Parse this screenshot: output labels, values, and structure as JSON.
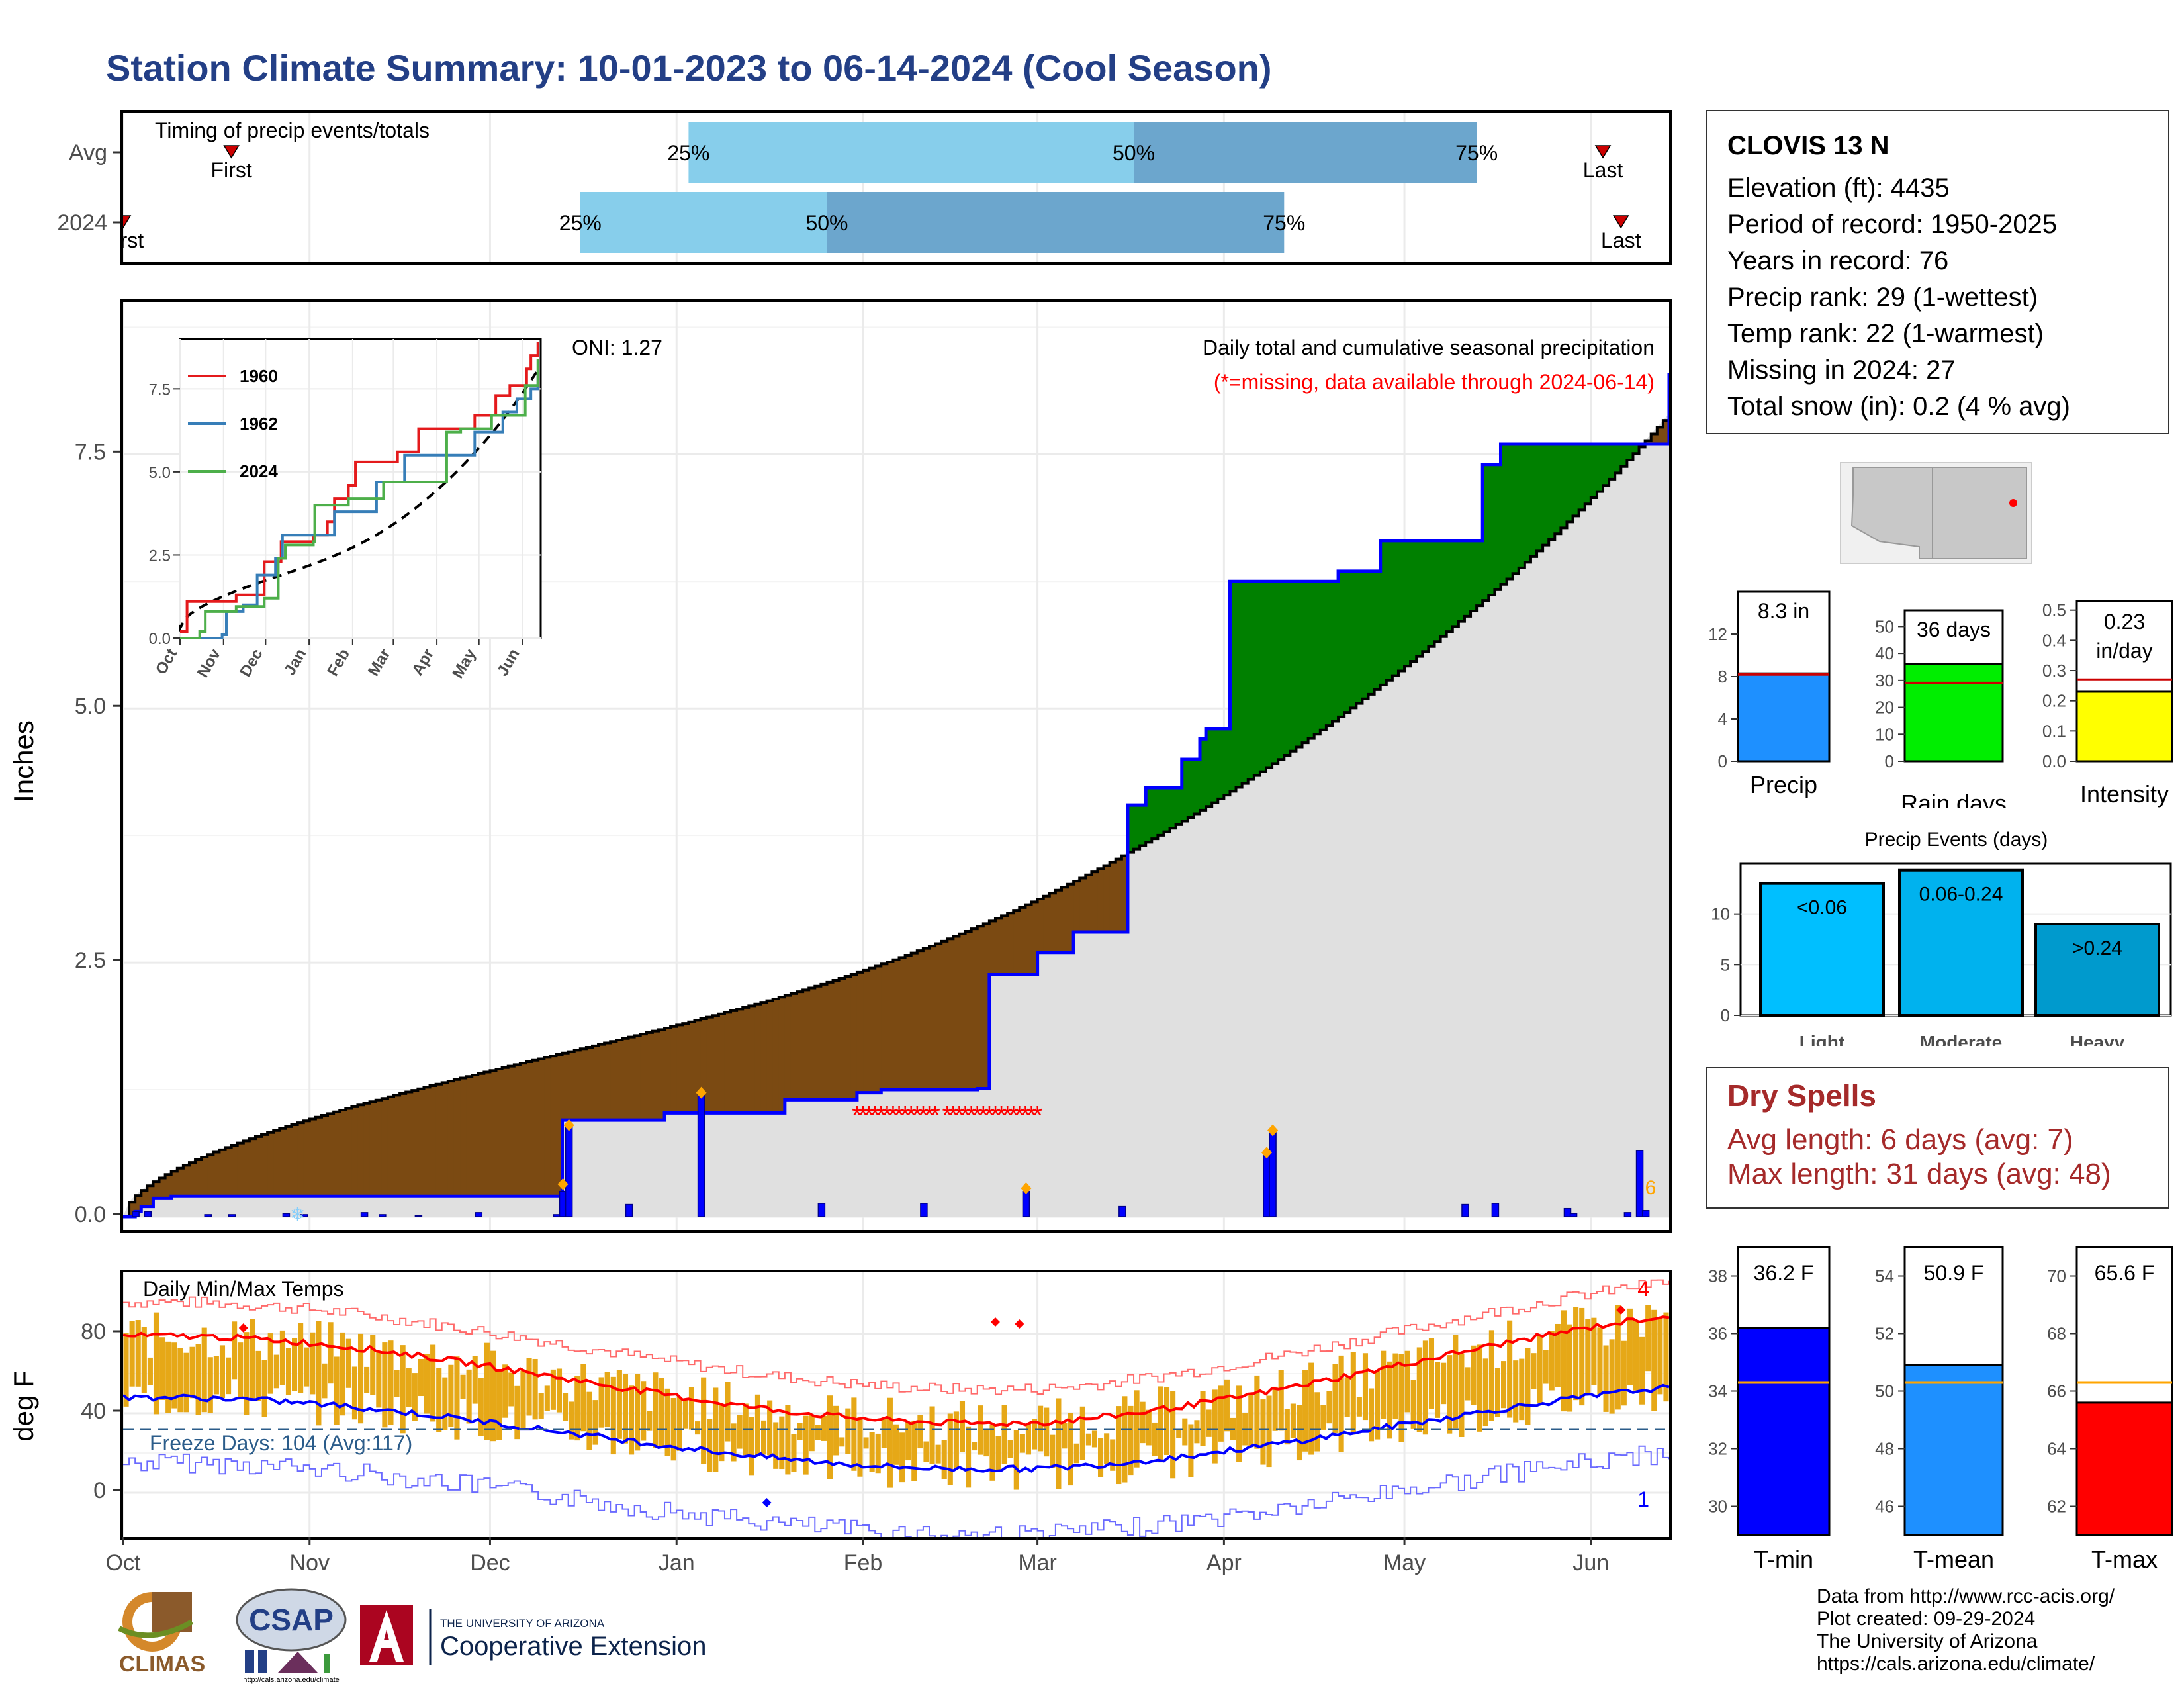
{
  "title": "Station Climate Summary: 10-01-2023 to 06-14-2024 (Cool Season)",
  "station": {
    "name": "CLOVIS 13 N",
    "lines": [
      "Elevation (ft): 4435",
      "Period of record: 1950-2025",
      "Years in record: 76",
      "Precip rank: 29 (1-wettest)",
      "Temp rank: 22 (1-warmest)",
      "Missing in 2024: 27",
      "Total snow (in): 0.2 (4 % avg)"
    ]
  },
  "months": [
    "Oct",
    "Nov",
    "Dec",
    "Jan",
    "Feb",
    "Mar",
    "Apr",
    "May",
    "Jun"
  ],
  "timing": {
    "label": "Timing of precip events/totals",
    "rows": [
      {
        "name": "Avg",
        "first_label": "First",
        "last_label": "Last",
        "q25": 25,
        "q50": 50,
        "q75": 75,
        "first_day": 18,
        "last_day": 246,
        "q25_day": 94,
        "q50_day": 168,
        "q75_day": 225
      },
      {
        "name": "2024",
        "first_label": "First",
        "last_label": "Last",
        "q25": 25,
        "q50": 50,
        "q75": 75,
        "first_day": 0,
        "last_day": 249,
        "q25_day": 76,
        "q50_day": 117,
        "q75_day": 193
      }
    ],
    "q_labels": [
      "25%",
      "50%",
      "75%"
    ],
    "colors": {
      "light": "#87ceeb",
      "dark": "#6ca6cd",
      "marker": "#cc0000"
    }
  },
  "precip_panel": {
    "ylabel": "Inches",
    "yticks": [
      "0.0",
      "2.5",
      "5.0",
      "7.5"
    ],
    "yrange": [
      0,
      9.0
    ],
    "oni": "ONI: 1.27",
    "caption": "Daily total and cumulative seasonal precipitation",
    "missing_note": "(*=missing, data available through 2024-06-14)",
    "colors": {
      "cum": "#0000ff",
      "above": "#008000",
      "below": "#7b4a12",
      "avg_fill": "#e0e0e0",
      "daily": "#0000ff",
      "missing": "#ff0000",
      "diamond": "#ffa500"
    }
  },
  "inset": {
    "series": [
      {
        "name": "1960",
        "color": "#e41a1c"
      },
      {
        "name": "1962",
        "color": "#377eb8"
      },
      {
        "name": "2024",
        "color": "#4daf4a"
      }
    ],
    "yticks": [
      "0.0",
      "2.5",
      "5.0",
      "7.5"
    ],
    "xticks": [
      "Oct",
      "Nov",
      "Dec",
      "Jan",
      "Feb",
      "Mar",
      "Apr",
      "May",
      "Jun"
    ]
  },
  "temp_panel": {
    "label": "Daily Min/Max Temps",
    "ylabel": "deg F",
    "yticks": [
      "0",
      "40",
      "80"
    ],
    "freeze": "Freeze Days: 104 (Avg:117)",
    "record_high_count": "4",
    "record_low_count": "1",
    "colors": {
      "bar": "#e6a817",
      "max": "#ff0000",
      "min": "#0000ff",
      "freeze": "#2b5c8a"
    }
  },
  "chart_data": [
    {
      "type": "line",
      "title": "Daily total and cumulative seasonal precipitation",
      "ylabel": "Inches",
      "ylim": [
        0,
        9.0
      ],
      "series": [
        {
          "name": "2024",
          "x_days": [
            0,
            4,
            6,
            8,
            14,
            15,
            40,
            43,
            50,
            128,
            129,
            130,
            141,
            159,
            196,
            216,
            224,
            252,
            255,
            256,
            270,
            280,
            286,
            296,
            301,
            310,
            313,
            317,
            319,
            326,
            352,
            359,
            370,
            401,
            407,
            456
          ],
          "values": [
            0,
            0.05,
            0.1,
            0.18,
            0.2,
            0.2,
            0.2,
            0.2,
            0.2,
            0.2,
            0.85,
            0.95,
            0.95,
            1.02,
            1.15,
            1.22,
            1.25,
            1.26,
            1.47,
            2.38,
            2.6,
            2.8,
            2.8,
            4.05,
            4.22,
            4.22,
            4.5,
            4.7,
            4.8,
            6.25,
            6.25,
            6.35,
            6.65,
            7.4,
            7.6,
            8.3
          ]
        }
      ]
    },
    {
      "type": "bar",
      "title": "Precip",
      "categories": [
        "Precip"
      ],
      "values": [
        8.3
      ],
      "avg": 8.2,
      "value_label": "8.3 in",
      "yticks": [
        0,
        4,
        8,
        12
      ],
      "ylim": [
        0,
        16
      ]
    },
    {
      "type": "bar",
      "title": "Rain days",
      "categories": [
        "Rain days"
      ],
      "values": [
        36
      ],
      "avg": 29,
      "value_label": "36 days",
      "yticks": [
        0,
        10,
        20,
        30,
        40,
        50
      ],
      "ylim": [
        0,
        56
      ]
    },
    {
      "type": "bar",
      "title": "Intensity",
      "categories": [
        "Intensity"
      ],
      "values": [
        0.23
      ],
      "avg": 0.27,
      "value_label": [
        "0.23",
        "in/day"
      ],
      "yticks": [
        0.0,
        0.1,
        0.2,
        0.3,
        0.4,
        0.5
      ],
      "ylim": [
        0,
        0.53
      ]
    },
    {
      "type": "bar",
      "title": "Precip Events (days)",
      "categories": [
        "Light",
        "Moderate",
        "Heavy"
      ],
      "bar_labels": [
        "<0.06",
        "0.06-0.24",
        ">0.24"
      ],
      "values": [
        13,
        14.3,
        9
      ],
      "yticks": [
        0,
        5,
        10
      ],
      "ylim": [
        0,
        15
      ]
    },
    {
      "type": "bar",
      "title": "T-min",
      "categories": [
        "T-min"
      ],
      "values": [
        36.2
      ],
      "avg": 34.3,
      "value_label": "36.2 F",
      "yticks": [
        30,
        32,
        34,
        36,
        38
      ],
      "ylim": [
        29,
        39
      ]
    },
    {
      "type": "bar",
      "title": "T-mean",
      "categories": [
        "T-mean"
      ],
      "values": [
        50.9
      ],
      "avg": 50.3,
      "value_label": "50.9 F",
      "yticks": [
        46,
        48,
        50,
        52,
        54
      ],
      "ylim": [
        45,
        55
      ]
    },
    {
      "type": "bar",
      "title": "T-max",
      "categories": [
        "T-max"
      ],
      "values": [
        65.6
      ],
      "avg": 66.3,
      "value_label": "65.6 F",
      "yticks": [
        62,
        64,
        66,
        68,
        70
      ],
      "ylim": [
        61,
        71
      ]
    }
  ],
  "dry_spells": {
    "title": "Dry Spells",
    "avg_line": "Avg length: 6 days (avg: 7)",
    "max_line": "Max length: 31 days (avg: 48)"
  },
  "footer": {
    "lines": [
      "Data from http://www.rcc-acis.org/",
      "Plot created: 09-29-2024",
      "The University of Arizona",
      "https://cals.arizona.edu/climate/"
    ]
  },
  "logos": {
    "climas": "CLIMAS",
    "csap": "CSAP",
    "csap_url": "http://cals.arizona.edu/climate",
    "ua_small": "THE UNIVERSITY OF ARIZONA",
    "ua_big": "Cooperative Extension"
  }
}
